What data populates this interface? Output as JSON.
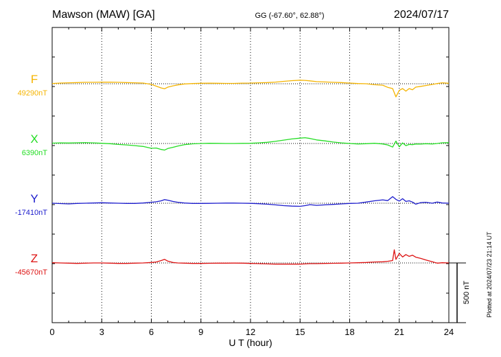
{
  "header": {
    "station": "Mawson (MAW)  [GA]",
    "coords": "GG (-67.60°,  62.88°)",
    "date": "2024/07/17"
  },
  "side_note": "Plotted at 2024/07/23 21:14 UT",
  "scale_label": "500 nT",
  "chart_data": {
    "type": "line",
    "xlabel": "U T (hour)",
    "xlim": [
      0,
      24
    ],
    "xticks": [
      "0",
      "3",
      "6",
      "9",
      "12",
      "15",
      "18",
      "21",
      "24"
    ],
    "scale_bar_nT": 500,
    "grid": true,
    "series": [
      {
        "name": "F",
        "baseline_label": "49290nT",
        "baseline_nT": 49290,
        "color": "#f5b400",
        "x": [
          0,
          0.5,
          1,
          1.5,
          2,
          2.5,
          3,
          3.5,
          4,
          4.5,
          5,
          5.5,
          6,
          6.3,
          6.6,
          6.8,
          7,
          7.3,
          7.6,
          8,
          8.5,
          9,
          9.5,
          10,
          10.5,
          11,
          11.5,
          12,
          12.5,
          13,
          13.5,
          14,
          14.5,
          15,
          15.3,
          15.6,
          16,
          16.5,
          17,
          17.5,
          18,
          18.5,
          19,
          19.5,
          20,
          20.3,
          20.6,
          20.8,
          21,
          21.2,
          21.4,
          21.6,
          21.8,
          22,
          22.3,
          22.6,
          23,
          23.3,
          23.6,
          24
        ],
        "y": [
          49292,
          49296,
          49298,
          49300,
          49302,
          49302,
          49304,
          49303,
          49302,
          49300,
          49298,
          49296,
          49285,
          49270,
          49255,
          49248,
          49262,
          49272,
          49280,
          49288,
          49292,
          49294,
          49295,
          49294,
          49293,
          49293,
          49295,
          49296,
          49298,
          49300,
          49304,
          49310,
          49316,
          49320,
          49318,
          49314,
          49308,
          49305,
          49302,
          49300,
          49296,
          49292,
          49290,
          49282,
          49278,
          49260,
          49250,
          49180,
          49235,
          49250,
          49228,
          49250,
          49240,
          49262,
          49268,
          49275,
          49284,
          49292,
          49298,
          49294
        ]
      },
      {
        "name": "X",
        "baseline_label": "6390nT",
        "baseline_nT": 6390,
        "color": "#22dd22",
        "x": [
          0,
          0.5,
          1,
          1.5,
          2,
          2.5,
          3,
          3.5,
          4,
          4.5,
          5,
          5.5,
          6,
          6.3,
          6.6,
          6.8,
          7,
          7.3,
          7.6,
          8,
          8.5,
          9,
          9.5,
          10,
          10.5,
          11,
          11.5,
          12,
          12.5,
          13,
          13.5,
          14,
          14.5,
          15,
          15.3,
          15.6,
          16,
          16.5,
          17,
          17.5,
          18,
          18.5,
          19,
          19.5,
          20,
          20.3,
          20.6,
          20.8,
          21,
          21.2,
          21.4,
          21.6,
          21.8,
          22,
          22.3,
          22.6,
          23,
          23.3,
          23.6,
          24
        ],
        "y": [
          6393,
          6395,
          6394,
          6396,
          6397,
          6395,
          6392,
          6388,
          6382,
          6378,
          6372,
          6365,
          6350,
          6352,
          6340,
          6335,
          6348,
          6358,
          6368,
          6380,
          6387,
          6390,
          6392,
          6391,
          6390,
          6390,
          6391,
          6392,
          6395,
          6400,
          6408,
          6418,
          6428,
          6435,
          6438,
          6432,
          6420,
          6412,
          6402,
          6395,
          6390,
          6386,
          6388,
          6392,
          6386,
          6378,
          6360,
          6410,
          6362,
          6395,
          6372,
          6382,
          6380,
          6386,
          6385,
          6388,
          6386,
          6390,
          6396,
          6397
        ]
      },
      {
        "name": "Y",
        "baseline_label": "-17410nT",
        "baseline_nT": -17410,
        "color": "#1a1acc",
        "x": [
          0,
          0.5,
          1,
          1.5,
          2,
          2.5,
          3,
          3.5,
          4,
          4.5,
          5,
          5.5,
          6,
          6.3,
          6.6,
          6.8,
          7,
          7.3,
          7.6,
          8,
          8.5,
          9,
          9.5,
          10,
          10.5,
          11,
          11.5,
          12,
          12.5,
          13,
          13.5,
          14,
          14.5,
          15,
          15.3,
          15.6,
          16,
          16.5,
          17,
          17.5,
          18,
          18.5,
          19,
          19.5,
          20,
          20.3,
          20.6,
          20.8,
          21,
          21.2,
          21.4,
          21.6,
          21.8,
          22,
          22.3,
          22.6,
          23,
          23.3,
          23.6,
          24
        ],
        "y": [
          -17410,
          -17413,
          -17416,
          -17412,
          -17410,
          -17408,
          -17406,
          -17408,
          -17410,
          -17412,
          -17412,
          -17408,
          -17402,
          -17398,
          -17390,
          -17380,
          -17385,
          -17395,
          -17402,
          -17408,
          -17412,
          -17412,
          -17411,
          -17410,
          -17409,
          -17409,
          -17410,
          -17411,
          -17414,
          -17418,
          -17424,
          -17430,
          -17434,
          -17436,
          -17430,
          -17422,
          -17428,
          -17424,
          -17420,
          -17416,
          -17412,
          -17410,
          -17400,
          -17390,
          -17382,
          -17388,
          -17355,
          -17378,
          -17392,
          -17372,
          -17395,
          -17390,
          -17400,
          -17418,
          -17405,
          -17402,
          -17410,
          -17400,
          -17408,
          -17410
        ]
      },
      {
        "name": "Z",
        "baseline_label": "-45670nT",
        "baseline_nT": -45670,
        "color": "#dd1111",
        "x": [
          0,
          0.5,
          1,
          1.5,
          2,
          2.5,
          3,
          3.5,
          4,
          4.5,
          5,
          5.5,
          6,
          6.3,
          6.6,
          6.8,
          7,
          7.3,
          7.6,
          8,
          8.5,
          9,
          9.5,
          10,
          10.5,
          11,
          11.5,
          12,
          12.5,
          13,
          13.5,
          14,
          14.5,
          15,
          15.3,
          15.6,
          16,
          16.5,
          17,
          17.5,
          18,
          18.5,
          19,
          19.5,
          20,
          20.3,
          20.6,
          20.7,
          20.8,
          21,
          21.2,
          21.4,
          21.6,
          21.8,
          22,
          22.3,
          22.6,
          23,
          23.3,
          23.6,
          24
        ],
        "y": [
          -45668,
          -45670,
          -45672,
          -45674,
          -45672,
          -45670,
          -45670,
          -45672,
          -45674,
          -45674,
          -45672,
          -45670,
          -45666,
          -45662,
          -45650,
          -45640,
          -45655,
          -45666,
          -45670,
          -45672,
          -45674,
          -45674,
          -45673,
          -45672,
          -45672,
          -45671,
          -45672,
          -45674,
          -45676,
          -45678,
          -45680,
          -45680,
          -45680,
          -45680,
          -45678,
          -45676,
          -45676,
          -45674,
          -45673,
          -45672,
          -45670,
          -45668,
          -45666,
          -45662,
          -45660,
          -45656,
          -45650,
          -45560,
          -45640,
          -45590,
          -45620,
          -45600,
          -45615,
          -45605,
          -45622,
          -45632,
          -45645,
          -45660,
          -45672,
          -45668,
          -45670
        ]
      }
    ]
  }
}
